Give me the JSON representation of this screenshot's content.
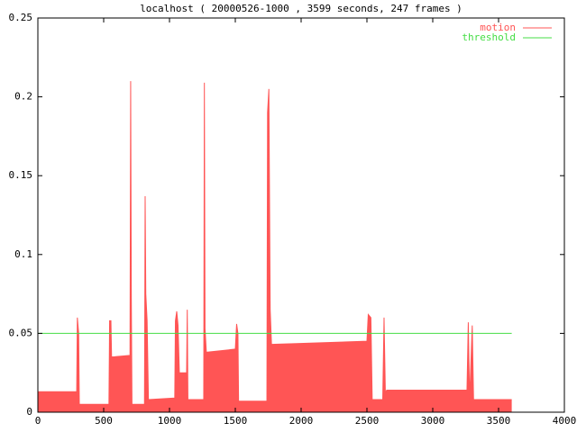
{
  "chart_data": {
    "type": "area",
    "title": "localhost ( 20000526-1000 , 3599 seconds, 247 frames )",
    "xlim": [
      0,
      4000
    ],
    "xticks": [
      0,
      500,
      1000,
      1500,
      2000,
      2500,
      3000,
      3500,
      4000
    ],
    "ylim": [
      0,
      0.25
    ],
    "yticks": [
      0,
      0.05,
      0.1,
      0.15,
      0.2,
      0.25
    ],
    "grid": false,
    "legend": "top-right",
    "series": [
      {
        "name": "motion",
        "color": "#ff5555",
        "style": "area",
        "x": [
          0,
          295,
          300,
          310,
          315,
          540,
          545,
          555,
          560,
          700,
          705,
          710,
          715,
          810,
          815,
          820,
          830,
          840,
          1040,
          1045,
          1055,
          1065,
          1075,
          1130,
          1135,
          1140,
          1260,
          1265,
          1270,
          1280,
          1500,
          1510,
          1520,
          1525,
          1740,
          1745,
          1755,
          1765,
          1775,
          2500,
          2510,
          2530,
          2540,
          2620,
          2630,
          2640,
          2650,
          3260,
          3270,
          3280,
          3300,
          3310,
          3600
        ],
        "values": [
          0.013,
          0.013,
          0.06,
          0.05,
          0.005,
          0.005,
          0.058,
          0.058,
          0.035,
          0.036,
          0.21,
          0.072,
          0.005,
          0.005,
          0.137,
          0.075,
          0.058,
          0.008,
          0.009,
          0.058,
          0.064,
          0.055,
          0.025,
          0.025,
          0.065,
          0.008,
          0.008,
          0.209,
          0.053,
          0.038,
          0.04,
          0.056,
          0.05,
          0.007,
          0.007,
          0.19,
          0.205,
          0.065,
          0.043,
          0.045,
          0.062,
          0.06,
          0.008,
          0.008,
          0.06,
          0.012,
          0.014,
          0.014,
          0.057,
          0.008,
          0.055,
          0.008,
          0.008
        ]
      },
      {
        "name": "threshold",
        "color": "#44dd44",
        "style": "line",
        "x": [
          0,
          3600
        ],
        "values": [
          0.05,
          0.05
        ]
      }
    ]
  }
}
